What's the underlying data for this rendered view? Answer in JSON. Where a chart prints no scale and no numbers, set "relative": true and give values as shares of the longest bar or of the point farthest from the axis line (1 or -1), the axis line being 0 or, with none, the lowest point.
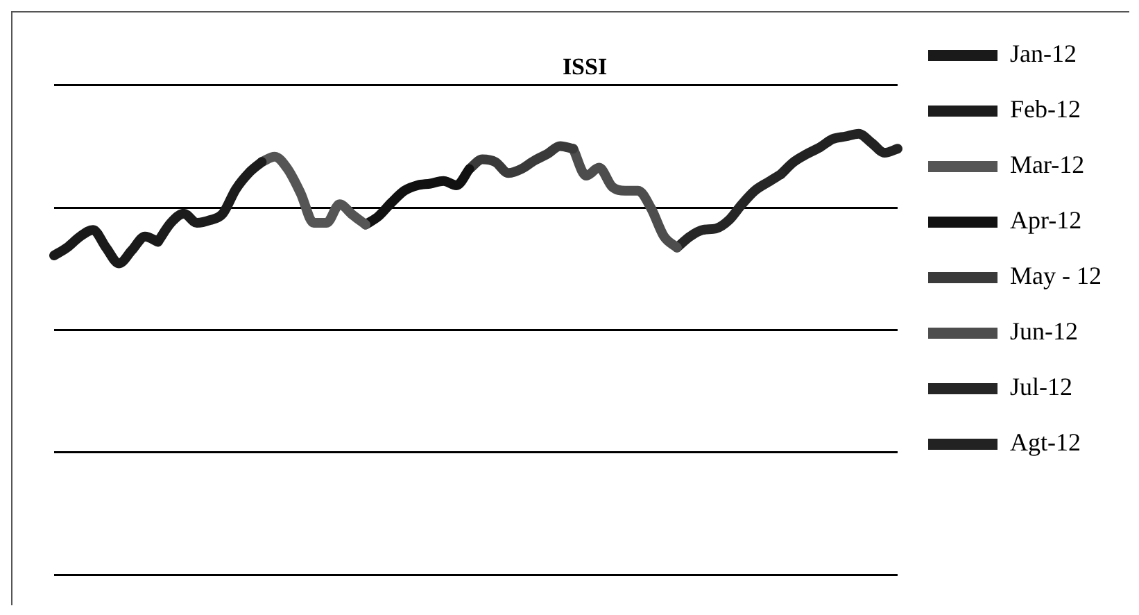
{
  "chart_data": {
    "type": "line",
    "title": "ISSI",
    "relative": true,
    "grid": "y",
    "legend": "right",
    "marker": "none",
    "line_style": "solid",
    "categories": [
      null,
      null,
      null,
      null,
      null,
      null,
      null,
      null,
      null,
      null,
      null,
      null,
      null,
      null,
      null,
      null,
      null,
      null,
      null,
      null,
      null,
      null,
      null,
      null,
      null,
      null,
      null,
      null,
      null,
      null,
      null,
      null,
      null,
      null,
      null,
      null,
      null,
      null,
      null,
      null,
      null,
      null,
      null,
      null,
      null,
      null,
      null,
      null,
      null,
      null,
      null,
      null,
      null,
      null,
      null,
      null,
      null,
      null,
      null,
      null,
      null,
      null,
      null,
      null,
      null,
      null
    ],
    "series": [
      {
        "name": "Jan-12",
        "color": "#1a1a1a",
        "values": [
          0.724,
          0.742,
          0.767,
          0.782,
          0.742,
          0.706,
          0.736,
          0.767,
          0.755,
          null,
          null,
          null,
          null,
          null,
          null,
          null,
          null,
          null,
          null,
          null,
          null,
          null,
          null,
          null,
          null,
          null,
          null,
          null,
          null,
          null,
          null,
          null,
          null,
          null,
          null,
          null,
          null,
          null,
          null,
          null,
          null,
          null,
          null,
          null,
          null,
          null,
          null,
          null,
          null,
          null,
          null,
          null,
          null,
          null,
          null,
          null,
          null,
          null,
          null,
          null,
          null,
          null,
          null,
          null,
          null,
          null
        ]
      },
      {
        "name": "Feb-12",
        "color": "#1c1c1c",
        "values": [
          null,
          null,
          null,
          null,
          null,
          null,
          null,
          null,
          0.755,
          0.798,
          0.819,
          0.798,
          0.804,
          0.819,
          0.874,
          0.911,
          0.936,
          null,
          null,
          null,
          null,
          null,
          null,
          null,
          null,
          null,
          null,
          null,
          null,
          null,
          null,
          null,
          null,
          null,
          null,
          null,
          null,
          null,
          null,
          null,
          null,
          null,
          null,
          null,
          null,
          null,
          null,
          null,
          null,
          null,
          null,
          null,
          null,
          null,
          null,
          null,
          null,
          null,
          null,
          null,
          null,
          null,
          null,
          null,
          null,
          null
        ]
      },
      {
        "name": "Mar-12",
        "color": "#555555",
        "values": [
          null,
          null,
          null,
          null,
          null,
          null,
          null,
          null,
          null,
          null,
          null,
          null,
          null,
          null,
          null,
          null,
          0.936,
          0.948,
          0.92,
          0.865,
          0.798,
          0.798,
          0.84,
          0.816,
          0.794,
          null,
          null,
          null,
          null,
          null,
          null,
          null,
          null,
          null,
          null,
          null,
          null,
          null,
          null,
          null,
          null,
          null,
          null,
          null,
          null,
          null,
          null,
          null,
          null,
          null,
          null,
          null,
          null,
          null,
          null,
          null,
          null,
          null,
          null,
          null,
          null,
          null,
          null,
          null,
          null,
          null
        ]
      },
      {
        "name": "Apr-12",
        "color": "#111111",
        "values": [
          null,
          null,
          null,
          null,
          null,
          null,
          null,
          null,
          null,
          null,
          null,
          null,
          null,
          null,
          null,
          null,
          null,
          null,
          null,
          null,
          null,
          null,
          null,
          null,
          0.794,
          0.813,
          0.844,
          0.871,
          0.883,
          0.887,
          0.893,
          0.883,
          0.92,
          null,
          null,
          null,
          null,
          null,
          null,
          null,
          null,
          null,
          null,
          null,
          null,
          null,
          null,
          null,
          null,
          null,
          null,
          null,
          null,
          null,
          null,
          null,
          null,
          null,
          null,
          null,
          null,
          null,
          null,
          null,
          null,
          null
        ]
      },
      {
        "name": "May - 12",
        "color": "#3a3a3a",
        "values": [
          null,
          null,
          null,
          null,
          null,
          null,
          null,
          null,
          null,
          null,
          null,
          null,
          null,
          null,
          null,
          null,
          null,
          null,
          null,
          null,
          null,
          null,
          null,
          null,
          null,
          null,
          null,
          null,
          null,
          null,
          null,
          null,
          0.92,
          0.942,
          0.936,
          0.911,
          0.92,
          0.939,
          0.954,
          0.972,
          0.966,
          null,
          null,
          null,
          null,
          null,
          null,
          null,
          null,
          null,
          null,
          null,
          null,
          null,
          null,
          null,
          null,
          null,
          null,
          null,
          null,
          null,
          null,
          null,
          null,
          null
        ]
      },
      {
        "name": "Jun-12",
        "color": "#4d4d4d",
        "values": [
          null,
          null,
          null,
          null,
          null,
          null,
          null,
          null,
          null,
          null,
          null,
          null,
          null,
          null,
          null,
          null,
          null,
          null,
          null,
          null,
          null,
          null,
          null,
          null,
          null,
          null,
          null,
          null,
          null,
          null,
          null,
          null,
          null,
          null,
          null,
          null,
          null,
          null,
          null,
          null,
          0.966,
          0.905,
          0.923,
          0.88,
          0.871,
          0.871,
          0.831,
          0.767,
          0.742,
          null,
          null,
          null,
          null,
          null,
          null,
          null,
          null,
          null,
          null,
          null,
          null,
          null,
          null,
          null,
          null,
          null
        ]
      },
      {
        "name": "Jul-12",
        "color": "#262626",
        "values": [
          null,
          null,
          null,
          null,
          null,
          null,
          null,
          null,
          null,
          null,
          null,
          null,
          null,
          null,
          null,
          null,
          null,
          null,
          null,
          null,
          null,
          null,
          null,
          null,
          null,
          null,
          null,
          null,
          null,
          null,
          null,
          null,
          null,
          null,
          null,
          null,
          null,
          null,
          null,
          null,
          null,
          null,
          null,
          null,
          null,
          null,
          null,
          null,
          0.742,
          0.767,
          0.782,
          0.785,
          0.804,
          0.84,
          0.871,
          0.89,
          0.908,
          null,
          null,
          null,
          null,
          null,
          null,
          null,
          null,
          null
        ]
      },
      {
        "name": "Agt-12",
        "color": "#222222",
        "values": [
          null,
          null,
          null,
          null,
          null,
          null,
          null,
          null,
          null,
          null,
          null,
          null,
          null,
          null,
          null,
          null,
          null,
          null,
          null,
          null,
          null,
          null,
          null,
          null,
          null,
          null,
          null,
          null,
          null,
          null,
          null,
          null,
          null,
          null,
          null,
          null,
          null,
          null,
          null,
          null,
          null,
          null,
          null,
          null,
          null,
          null,
          null,
          null,
          null,
          null,
          null,
          null,
          null,
          null,
          null,
          null,
          0.908,
          0.936,
          0.954,
          0.969,
          0.988,
          0.994,
          1,
          0.979,
          0.957,
          0.966
        ]
      }
    ]
  }
}
